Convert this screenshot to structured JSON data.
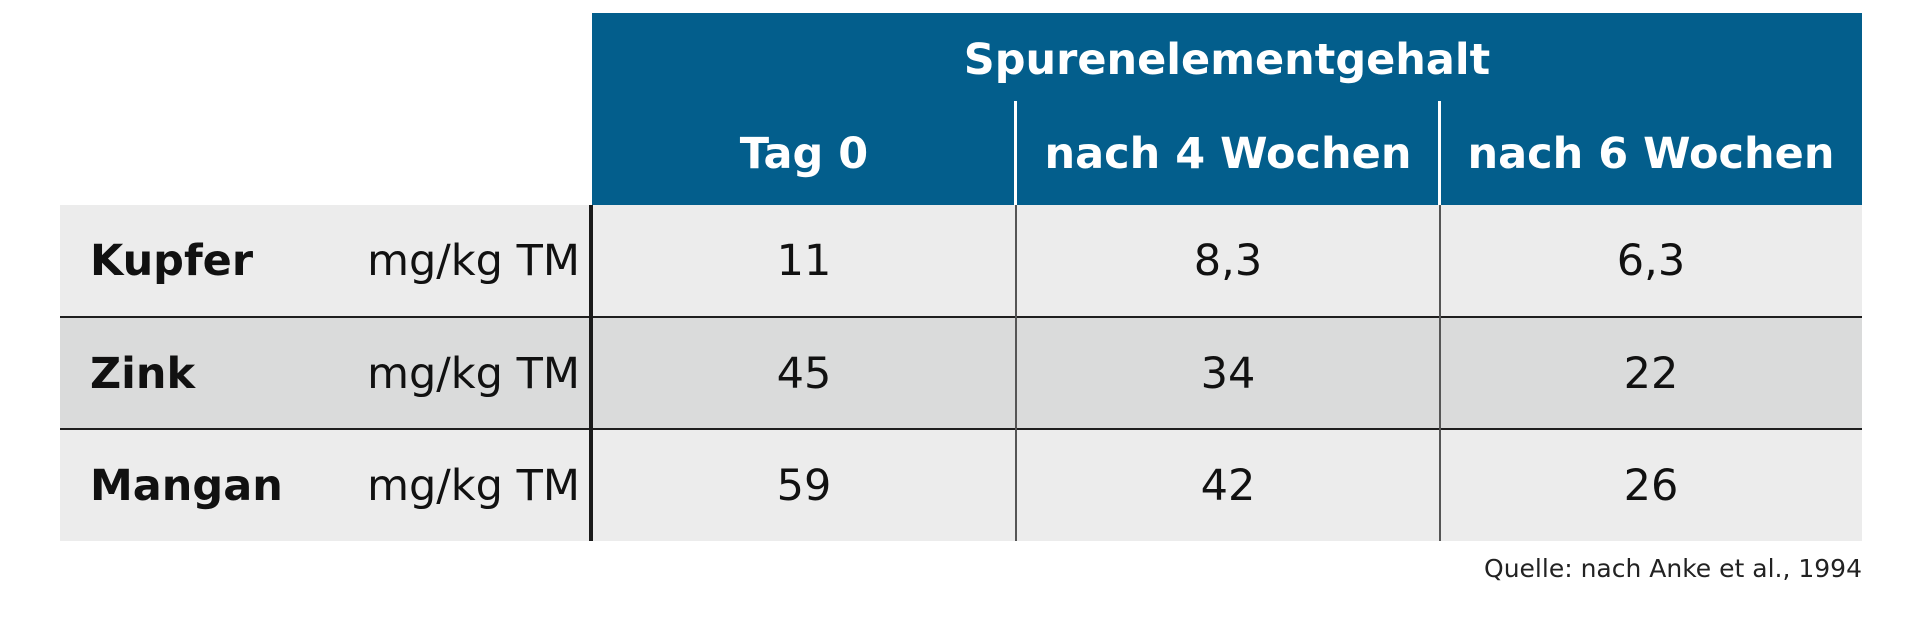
{
  "table": {
    "group_header": "Spurenelementgehalt",
    "columns": [
      "Tag 0",
      "nach 4 Wochen",
      "nach 6 Wochen"
    ],
    "rows": [
      {
        "name": "Kupfer",
        "unit": "mg/kg TM",
        "values": [
          "11",
          "8,3",
          "6,3"
        ]
      },
      {
        "name": "Zink",
        "unit": "mg/kg TM",
        "values": [
          "45",
          "34",
          "22"
        ]
      },
      {
        "name": "Mangan",
        "unit": "mg/kg TM",
        "values": [
          "59",
          "42",
          "26"
        ]
      }
    ],
    "colors": {
      "header_bg": "#035e8c",
      "row_light": "#ececec",
      "row_dark": "#dadbdb"
    }
  },
  "source": "Quelle: nach Anke et al., 1994"
}
